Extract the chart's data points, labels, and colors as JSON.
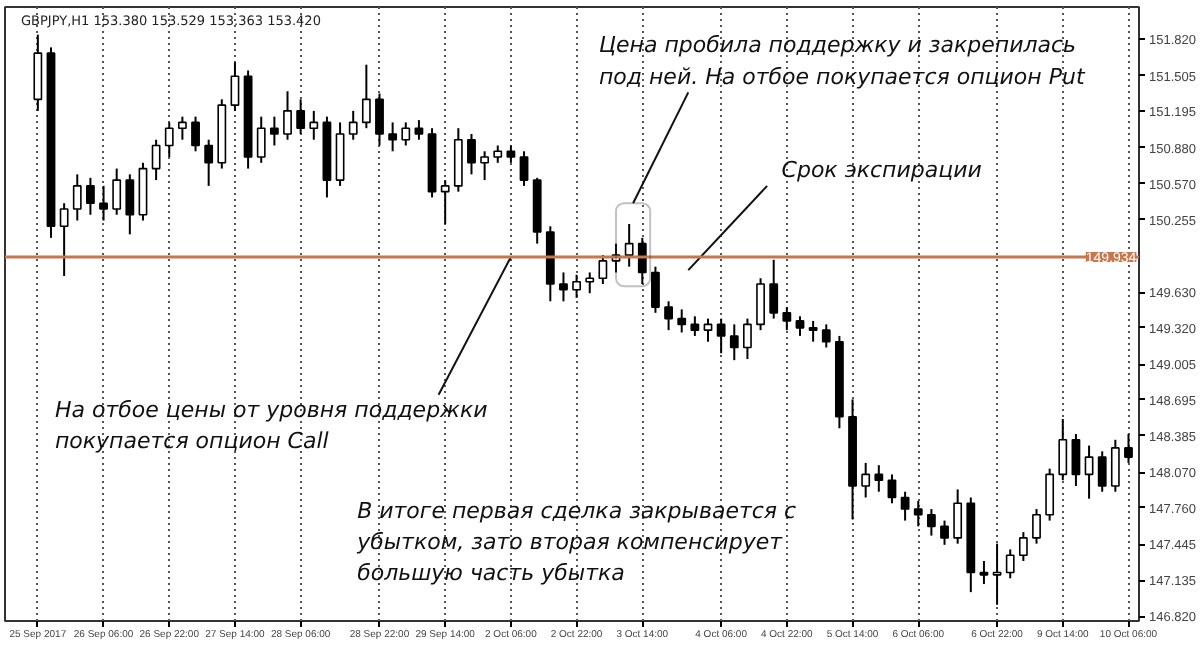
{
  "chart_data": {
    "type": "candlestick",
    "title": "GBPJPY,H1  153.380 153.529 153.363 153.420",
    "color": "#000000",
    "categories": [
      "25 Sep 2017",
      null,
      null,
      null,
      null,
      "26 Sep 06:00",
      null,
      null,
      null,
      null,
      "26 Sep 22:00",
      null,
      null,
      null,
      null,
      "27 Sep 14:00",
      null,
      null,
      null,
      null,
      "28 Sep 06:00",
      null,
      null,
      null,
      null,
      null,
      "28 Sep 22:00",
      null,
      null,
      null,
      null,
      "29 Sep 14:00",
      null,
      null,
      null,
      null,
      "2 Oct 06:00",
      null,
      null,
      null,
      null,
      "2 Oct 22:00",
      null,
      null,
      null,
      null,
      "3 Oct 14:00",
      null,
      null,
      null,
      null,
      null,
      "4 Oct 06:00",
      null,
      null,
      null,
      null,
      "4 Oct 22:00",
      null,
      null,
      null,
      null,
      "5 Oct 14:00",
      null,
      null,
      null,
      null,
      "6 Oct 06:00",
      null,
      null,
      null,
      null,
      null,
      "6 Oct 22:00",
      null,
      null,
      null,
      null,
      "9 Oct 14:00",
      null,
      null,
      null,
      null,
      "10 Oct 06:00"
    ],
    "ohlc": [
      [
        151.3,
        151.86,
        151.2,
        151.7
      ],
      [
        151.7,
        151.75,
        150.1,
        150.2
      ],
      [
        150.2,
        150.4,
        149.77,
        150.35
      ],
      [
        150.35,
        150.65,
        150.25,
        150.55
      ],
      [
        150.55,
        150.62,
        150.3,
        150.4
      ],
      [
        150.4,
        150.55,
        150.25,
        150.35
      ],
      [
        150.35,
        150.7,
        150.3,
        150.6
      ],
      [
        150.6,
        150.65,
        150.13,
        150.3
      ],
      [
        150.3,
        150.75,
        150.25,
        150.7
      ],
      [
        150.7,
        150.95,
        150.6,
        150.9
      ],
      [
        150.9,
        151.1,
        150.8,
        151.05
      ],
      [
        151.05,
        151.15,
        150.95,
        151.1
      ],
      [
        151.1,
        151.15,
        150.85,
        150.9
      ],
      [
        150.9,
        150.95,
        150.55,
        150.75
      ],
      [
        150.75,
        151.3,
        150.7,
        151.25
      ],
      [
        151.25,
        151.62,
        151.2,
        151.5
      ],
      [
        151.5,
        151.55,
        150.7,
        150.8
      ],
      [
        150.8,
        151.15,
        150.75,
        151.05
      ],
      [
        151.05,
        151.15,
        150.9,
        151.0
      ],
      [
        151.0,
        151.37,
        150.95,
        151.2
      ],
      [
        151.2,
        151.3,
        151.0,
        151.05
      ],
      [
        151.05,
        151.2,
        150.95,
        151.1
      ],
      [
        151.1,
        151.15,
        150.45,
        150.6
      ],
      [
        150.6,
        151.1,
        150.55,
        151.0
      ],
      [
        151.0,
        151.2,
        150.95,
        151.1
      ],
      [
        151.1,
        151.6,
        151.05,
        151.3
      ],
      [
        151.3,
        151.35,
        150.9,
        151.0
      ],
      [
        151.0,
        151.1,
        150.85,
        150.95
      ],
      [
        150.95,
        151.1,
        150.9,
        151.05
      ],
      [
        151.05,
        151.12,
        150.95,
        151.0
      ],
      [
        151.0,
        151.05,
        150.45,
        150.5
      ],
      [
        150.5,
        150.6,
        150.22,
        150.55
      ],
      [
        150.55,
        151.05,
        150.5,
        150.95
      ],
      [
        150.95,
        151.0,
        150.65,
        150.75
      ],
      [
        150.75,
        150.85,
        150.6,
        150.8
      ],
      [
        150.8,
        150.9,
        150.75,
        150.85
      ],
      [
        150.85,
        150.9,
        150.75,
        150.8
      ],
      [
        150.8,
        150.85,
        150.55,
        150.6
      ],
      [
        150.6,
        150.62,
        150.05,
        150.15
      ],
      [
        150.15,
        150.2,
        149.55,
        149.7
      ],
      [
        149.7,
        149.8,
        149.55,
        149.65
      ],
      [
        149.65,
        149.78,
        149.58,
        149.72
      ],
      [
        149.72,
        149.8,
        149.62,
        149.75
      ],
      [
        149.75,
        149.95,
        149.7,
        149.9
      ],
      [
        149.9,
        150.05,
        149.8,
        149.95
      ],
      [
        149.95,
        150.22,
        149.85,
        150.05
      ],
      [
        150.05,
        150.1,
        149.7,
        149.8
      ],
      [
        149.8,
        149.85,
        149.45,
        149.5
      ],
      [
        149.5,
        149.55,
        149.3,
        149.4
      ],
      [
        149.4,
        149.48,
        149.28,
        149.35
      ],
      [
        149.35,
        149.42,
        149.25,
        149.3
      ],
      [
        149.3,
        149.4,
        149.2,
        149.35
      ],
      [
        149.35,
        149.4,
        149.1,
        149.25
      ],
      [
        149.25,
        149.35,
        149.04,
        149.15
      ],
      [
        149.15,
        149.4,
        149.05,
        149.35
      ],
      [
        149.35,
        149.75,
        149.3,
        149.7
      ],
      [
        149.7,
        149.91,
        149.4,
        149.45
      ],
      [
        149.45,
        149.5,
        149.3,
        149.38
      ],
      [
        149.38,
        149.42,
        149.25,
        149.32
      ],
      [
        149.32,
        149.38,
        149.2,
        149.3
      ],
      [
        149.3,
        149.35,
        149.15,
        149.2
      ],
      [
        149.2,
        149.25,
        148.45,
        148.55
      ],
      [
        148.55,
        148.7,
        147.66,
        147.95
      ],
      [
        147.95,
        148.15,
        147.85,
        148.05
      ],
      [
        148.05,
        148.13,
        147.9,
        148.0
      ],
      [
        148.0,
        148.05,
        147.8,
        147.85
      ],
      [
        147.85,
        147.9,
        147.65,
        147.75
      ],
      [
        147.75,
        147.82,
        147.6,
        147.7
      ],
      [
        147.7,
        147.75,
        147.52,
        147.6
      ],
      [
        147.6,
        147.65,
        147.44,
        147.5
      ],
      [
        147.5,
        147.92,
        147.45,
        147.8
      ],
      [
        147.8,
        147.85,
        147.03,
        147.2
      ],
      [
        147.2,
        147.3,
        147.1,
        147.18
      ],
      [
        147.18,
        147.45,
        146.92,
        147.2
      ],
      [
        147.2,
        147.4,
        147.15,
        147.35
      ],
      [
        147.35,
        147.55,
        147.3,
        147.5
      ],
      [
        147.5,
        147.75,
        147.45,
        147.7
      ],
      [
        147.7,
        148.1,
        147.65,
        148.05
      ],
      [
        148.05,
        148.53,
        148.0,
        148.35
      ],
      [
        148.35,
        148.4,
        147.95,
        148.05
      ],
      [
        148.05,
        148.3,
        147.84,
        148.2
      ],
      [
        148.2,
        148.25,
        147.9,
        147.95
      ],
      [
        147.95,
        148.35,
        147.9,
        148.28
      ],
      [
        148.28,
        148.4,
        148.15,
        148.2
      ]
    ],
    "ylim": [
      146.78,
      152.1
    ],
    "yticks": [
      {
        "value": 146.82,
        "label": "146.820"
      },
      {
        "value": 147.135,
        "label": "147.135"
      },
      {
        "value": 147.445,
        "label": "147.445"
      },
      {
        "value": 147.76,
        "label": "147.760"
      },
      {
        "value": 148.07,
        "label": "148.070"
      },
      {
        "value": 148.385,
        "label": "148.385"
      },
      {
        "value": 148.695,
        "label": "148.695"
      },
      {
        "value": 149.005,
        "label": "149.005"
      },
      {
        "value": 149.32,
        "label": "149.320"
      },
      {
        "value": 149.63,
        "label": "149.630"
      },
      {
        "value": 150.255,
        "label": "150.255"
      },
      {
        "value": 150.57,
        "label": "150.570"
      },
      {
        "value": 150.88,
        "label": "150.880"
      },
      {
        "value": 151.195,
        "label": "151.195"
      },
      {
        "value": 151.505,
        "label": "151.505"
      },
      {
        "value": 151.82,
        "label": "151.820"
      }
    ],
    "grid": "x",
    "ref_lines": [
      {
        "axis": "y",
        "value": 149.934,
        "label": "149.934",
        "color": "#c8764a"
      }
    ],
    "annotations": [
      "Цена пробила поддержку и закрепилась\nпод ней. На отбое покупается опцион Put",
      "Срок экспирации",
      {
        "text": "На отбое цены от уровня поддержки\nпокупается опцион Call",
        "x": "2 Oct 06:00",
        "y": 149.934
      },
      "В итоге первая сделка закрывается с\nубытком, зато вторая компенсирует\nбольшую часть убытка"
    ]
  }
}
